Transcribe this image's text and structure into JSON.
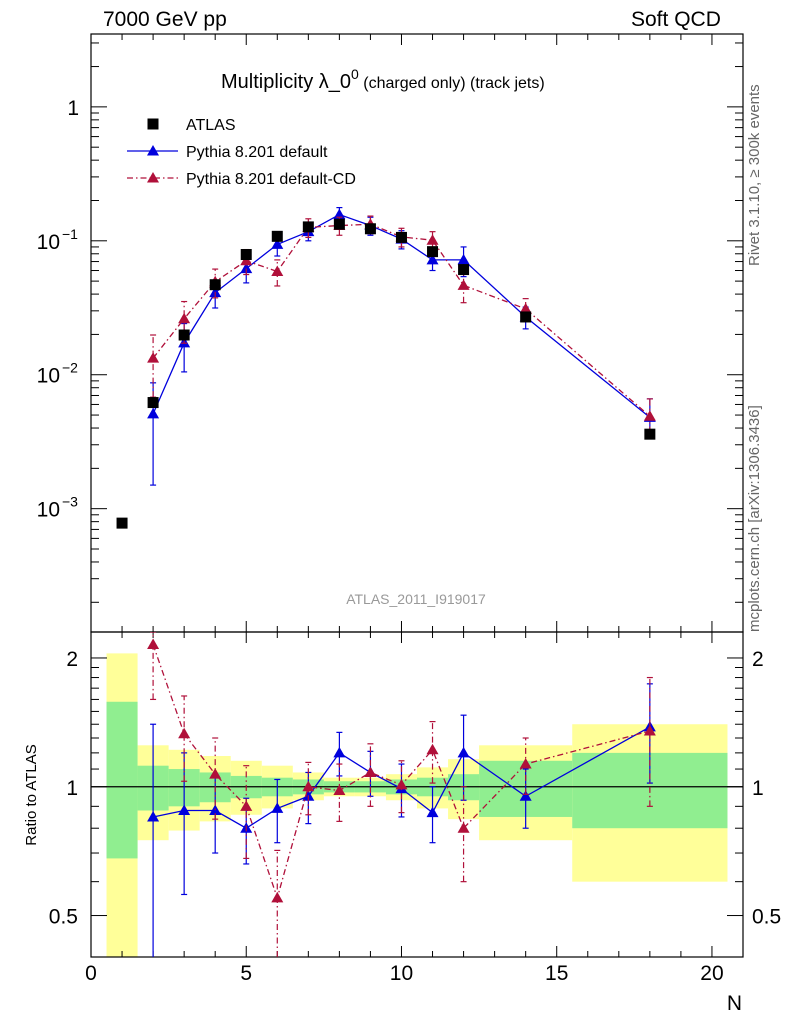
{
  "header": {
    "energy_label": "7000 GeV pp",
    "process_label": "Soft QCD"
  },
  "side_labels": {
    "rivet": "Rivet 3.1.10, ≥ 300k events",
    "mcplots": "mcplots.cern.ch [arXiv:1306.3436]"
  },
  "chart_data": {
    "type": "scatter",
    "title": "Multiplicity λ_0",
    "title_sup": "0",
    "title_suffix": "(charged only) (track jets)",
    "analysis_label": "ATLAS_2011_I919017",
    "xlabel": "N",
    "ratio_ylabel": "Ratio to ATLAS",
    "xlim": [
      0,
      21
    ],
    "ylim_log": [
      0.00012,
      3.5
    ],
    "ratio_ylim": [
      0.4,
      2.3
    ],
    "y_scale": "log",
    "ratio_y_scale": "log",
    "x_ticks": [
      "0",
      "5",
      "10",
      "15",
      "20"
    ],
    "y_tick_labels": [
      {
        "base": "10",
        "exp": "−3",
        "value": 0.001
      },
      {
        "base": "10",
        "exp": "−2",
        "value": 0.01
      },
      {
        "base": "10",
        "exp": "−1",
        "value": 0.1
      },
      {
        "base": "1",
        "exp": "",
        "value": 1
      }
    ],
    "ratio_y_ticks": [
      "0.5",
      "1",
      "2"
    ],
    "legend_position": "top-left",
    "series": [
      {
        "name": "ATLAS",
        "color": "#000000",
        "marker": "square",
        "x": [
          1,
          2,
          3,
          4,
          5,
          6,
          7,
          8,
          9,
          10,
          11,
          12,
          14,
          18
        ],
        "y": [
          0.00078,
          0.0062,
          0.0198,
          0.047,
          0.079,
          0.108,
          0.127,
          0.133,
          0.123,
          0.106,
          0.083,
          0.061,
          0.027,
          0.0036
        ]
      },
      {
        "name": "Pythia 8.201 default",
        "color": "#0000dd",
        "marker": "triangle",
        "line": "solid",
        "x": [
          2,
          3,
          4,
          5,
          6,
          7,
          8,
          9,
          10,
          11,
          12,
          14,
          18
        ],
        "y": [
          0.0051,
          0.0173,
          0.041,
          0.062,
          0.094,
          0.117,
          0.157,
          0.13,
          0.103,
          0.072,
          0.072,
          0.027,
          0.0048
        ],
        "err_lo": [
          0.0036,
          0.0068,
          0.0095,
          0.0135,
          0.017,
          0.017,
          0.02,
          0.02,
          0.016,
          0.012,
          0.018,
          0.005,
          0.0013
        ],
        "err_hi": [
          0.0036,
          0.0068,
          0.0095,
          0.0135,
          0.017,
          0.017,
          0.02,
          0.02,
          0.016,
          0.012,
          0.018,
          0.005,
          0.0018
        ],
        "ratio": [
          0.85,
          0.88,
          0.88,
          0.8,
          0.89,
          0.95,
          1.2,
          1.08,
          0.99,
          0.87,
          1.2,
          0.95,
          1.38
        ],
        "ratio_err": [
          0.55,
          0.32,
          0.18,
          0.14,
          0.15,
          0.13,
          0.14,
          0.13,
          0.14,
          0.13,
          0.27,
          0.15,
          0.36
        ]
      },
      {
        "name": "Pythia 8.201 default-CD",
        "color": "#b0103a",
        "marker": "triangle",
        "line": "dashdot",
        "x": [
          2,
          3,
          4,
          5,
          6,
          7,
          8,
          9,
          10,
          11,
          12,
          14,
          18
        ],
        "y": [
          0.0133,
          0.0262,
          0.0495,
          0.071,
          0.059,
          0.126,
          0.13,
          0.133,
          0.107,
          0.101,
          0.0465,
          0.031,
          0.0049
        ],
        "err_lo": [
          0.0065,
          0.009,
          0.012,
          0.015,
          0.013,
          0.02,
          0.02,
          0.02,
          0.017,
          0.016,
          0.012,
          0.006,
          0.0012
        ],
        "err_hi": [
          0.0065,
          0.009,
          0.012,
          0.015,
          0.013,
          0.02,
          0.02,
          0.02,
          0.017,
          0.016,
          0.012,
          0.006,
          0.0017
        ],
        "ratio": [
          2.15,
          1.33,
          1.07,
          0.9,
          0.55,
          1.0,
          0.98,
          1.08,
          1.01,
          1.22,
          0.8,
          1.13,
          1.35
        ],
        "ratio_err": [
          0.55,
          0.3,
          0.23,
          0.22,
          0.16,
          0.14,
          0.15,
          0.18,
          0.14,
          0.2,
          0.2,
          0.17,
          0.45
        ]
      }
    ],
    "ratio_bands": [
      {
        "x0": 0.5,
        "x1": 1.5,
        "stat_lo": 0.68,
        "stat_hi": 1.58,
        "tot_lo": 0.1,
        "tot_hi": 2.05
      },
      {
        "x0": 1.5,
        "x1": 2.5,
        "stat_lo": 0.88,
        "stat_hi": 1.12,
        "tot_lo": 0.75,
        "tot_hi": 1.25
      },
      {
        "x0": 2.5,
        "x1": 3.5,
        "stat_lo": 0.9,
        "stat_hi": 1.1,
        "tot_lo": 0.79,
        "tot_hi": 1.22
      },
      {
        "x0": 3.5,
        "x1": 4.5,
        "stat_lo": 0.92,
        "stat_hi": 1.08,
        "tot_lo": 0.83,
        "tot_hi": 1.18
      },
      {
        "x0": 4.5,
        "x1": 5.5,
        "stat_lo": 0.94,
        "stat_hi": 1.06,
        "tot_lo": 0.86,
        "tot_hi": 1.15
      },
      {
        "x0": 5.5,
        "x1": 6.5,
        "stat_lo": 0.95,
        "stat_hi": 1.05,
        "tot_lo": 0.89,
        "tot_hi": 1.12
      },
      {
        "x0": 6.5,
        "x1": 7.5,
        "stat_lo": 0.96,
        "stat_hi": 1.04,
        "tot_lo": 0.93,
        "tot_hi": 1.08
      },
      {
        "x0": 7.5,
        "x1": 8.5,
        "stat_lo": 0.97,
        "stat_hi": 1.03,
        "tot_lo": 0.95,
        "tot_hi": 1.05
      },
      {
        "x0": 8.5,
        "x1": 9.5,
        "stat_lo": 0.97,
        "stat_hi": 1.03,
        "tot_lo": 0.95,
        "tot_hi": 1.05
      },
      {
        "x0": 9.5,
        "x1": 10.5,
        "stat_lo": 0.96,
        "stat_hi": 1.04,
        "tot_lo": 0.93,
        "tot_hi": 1.07
      },
      {
        "x0": 10.5,
        "x1": 11.5,
        "stat_lo": 0.95,
        "stat_hi": 1.05,
        "tot_lo": 0.89,
        "tot_hi": 1.11
      },
      {
        "x0": 11.5,
        "x1": 12.5,
        "stat_lo": 0.93,
        "stat_hi": 1.07,
        "tot_lo": 0.84,
        "tot_hi": 1.16
      },
      {
        "x0": 12.5,
        "x1": 15.5,
        "stat_lo": 0.85,
        "stat_hi": 1.15,
        "tot_lo": 0.75,
        "tot_hi": 1.25
      },
      {
        "x0": 15.5,
        "x1": 20.5,
        "stat_lo": 0.8,
        "stat_hi": 1.2,
        "tot_lo": 0.6,
        "tot_hi": 1.4
      }
    ],
    "band_colors": {
      "stat": "#90ee90",
      "total": "#ffff99"
    }
  }
}
